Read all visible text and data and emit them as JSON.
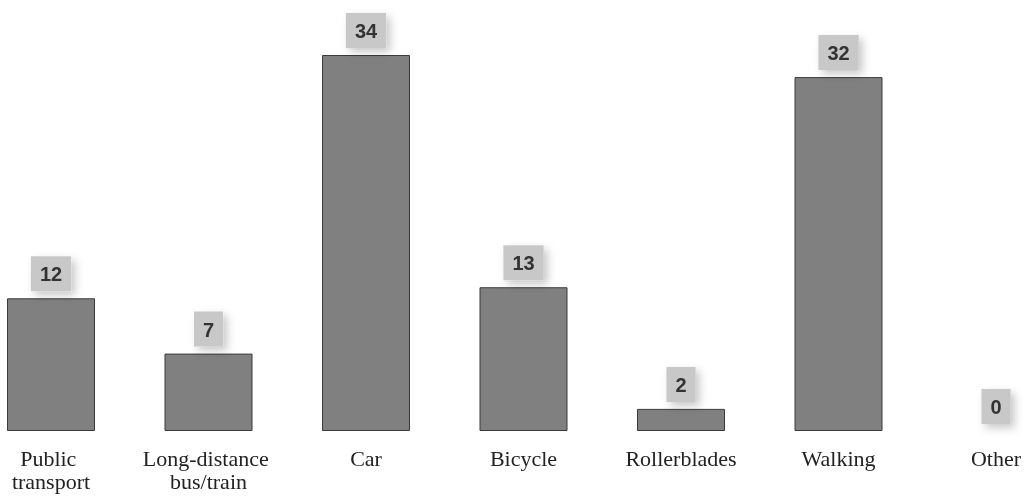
{
  "chart_data": {
    "type": "bar",
    "categories": [
      "Public transport",
      "Long-distance bus/train",
      "Car",
      "Bicycle",
      "Rollerblades",
      "Walking",
      "Other"
    ],
    "values": [
      12,
      7,
      34,
      13,
      2,
      32,
      0
    ],
    "color": "#808080",
    "data_labels": true
  }
}
